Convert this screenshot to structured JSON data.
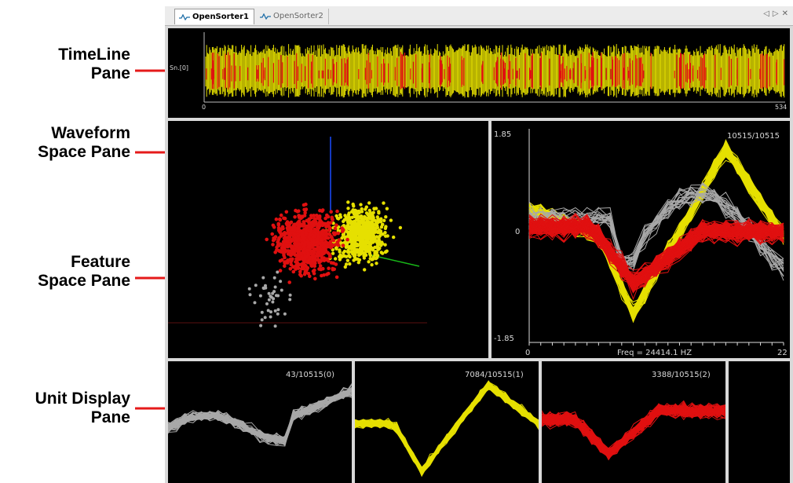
{
  "annotations": [
    {
      "line1": "TimeLine",
      "line2": "Pane"
    },
    {
      "line1": "Waveform",
      "line2": "Space Pane"
    },
    {
      "line1": "Feature",
      "line2": "Space Pane"
    },
    {
      "line1": "Unit Display",
      "line2": "Pane"
    }
  ],
  "tabs": [
    {
      "label": "OpenSorter1",
      "active": true
    },
    {
      "label": "OpenSorter2",
      "active": false
    }
  ],
  "tab_controls": {
    "prev": "◁",
    "next": "▷",
    "close": "✕"
  },
  "timeline": {
    "channel_label": "Sn.[0]",
    "x_start": "0",
    "x_end": "534"
  },
  "waveform": {
    "counter": "10515/10515",
    "y_max": "1.85",
    "y_zero": "0",
    "y_min": "-1.85",
    "x_start": "0",
    "x_end": "22",
    "freq_label": "Freq = 24414.1 HZ"
  },
  "units": [
    {
      "label": "43/10515(0)",
      "color": "#a8a8a8"
    },
    {
      "label": "7084/10515(1)",
      "color": "#e6e000"
    },
    {
      "label": "3388/10515(2)",
      "color": "#e01010"
    }
  ],
  "colors": {
    "unsorted": "#a8a8a8",
    "unit1": "#e6e000",
    "unit2": "#e01010",
    "arrow": "#e51a1a",
    "axis_x": "#1a4cff",
    "axis_y": "#18b818"
  }
}
